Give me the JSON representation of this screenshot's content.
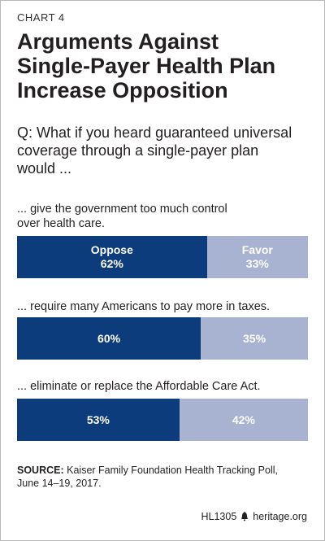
{
  "chart_label": "CHART 4",
  "title_lines": [
    "Arguments Against",
    "Single-Payer Health Plan",
    "Increase Opposition"
  ],
  "question_lines": [
    "Q: What if you heard guaranteed universal",
    "coverage through a single-payer plan",
    "would ..."
  ],
  "chart_data": {
    "type": "bar",
    "orientation": "horizontal-stacked",
    "categories": [
      "... give the government too much control over health care.",
      "... require many Americans to pay more in taxes.",
      "... eliminate or replace the Affordable Care Act."
    ],
    "series": [
      {
        "name": "Oppose",
        "values": [
          62,
          60,
          53
        ],
        "color": "#0c3c7c"
      },
      {
        "name": "Favor",
        "values": [
          33,
          35,
          42
        ],
        "color": "#a8b3d2"
      }
    ],
    "value_suffix": "%"
  },
  "rows": [
    {
      "label_lines": [
        "... give the government too much control",
        "over health care."
      ],
      "oppose_text": [
        "Oppose",
        "62%"
      ],
      "favor_text": [
        "Favor",
        "33%"
      ]
    },
    {
      "label_lines": [
        "... require many Americans to pay more in taxes."
      ],
      "oppose_text": [
        "60%"
      ],
      "favor_text": [
        "35%"
      ]
    },
    {
      "label_lines": [
        "... eliminate or replace the Affordable Care Act."
      ],
      "oppose_text": [
        "53%"
      ],
      "favor_text": [
        "42%"
      ]
    }
  ],
  "source": {
    "prefix": "SOURCE:",
    "text": " Kaiser Family Foundation Health Tracking Poll,",
    "line2": "June 14–19, 2017."
  },
  "footer": {
    "code": "HL1305",
    "site": "heritage.org"
  }
}
